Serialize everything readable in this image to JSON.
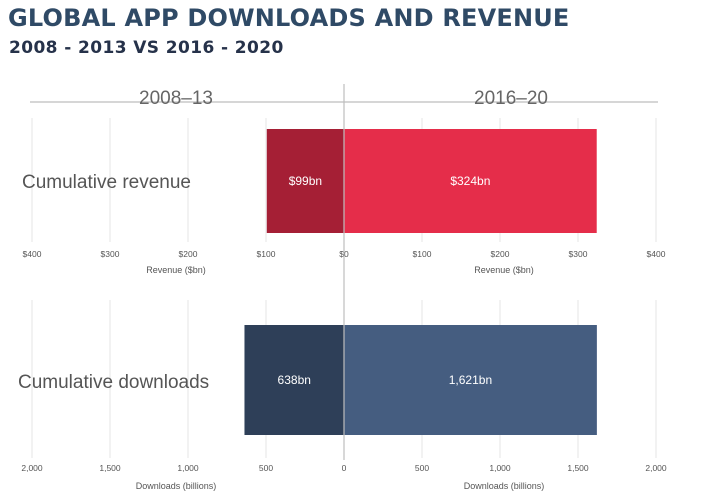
{
  "title": "GLOBAL APP DOWNLOADS AND REVENUE",
  "subtitle": "2008 - 2013 VS 2016 - 2020",
  "chart_data": [
    {
      "type": "bar",
      "orientation": "horizontal-diverging",
      "category": "Cumulative revenue",
      "periods": [
        "2008–13",
        "2016–20"
      ],
      "series": [
        {
          "period": "2008–13",
          "value": 99,
          "label": "$99bn",
          "color": "#a51f35"
        },
        {
          "period": "2016–20",
          "value": 324,
          "label": "$324bn",
          "color": "#e52d4a"
        }
      ],
      "xlim": [
        -400,
        400
      ],
      "ticks": [
        -400,
        -300,
        -200,
        -100,
        0,
        100,
        200,
        300,
        400
      ],
      "tick_labels": [
        "$400",
        "$300",
        "$200",
        "$100",
        "$0",
        "$100",
        "$200",
        "$300",
        "$400"
      ],
      "xlabel_left": "Revenue ($bn)",
      "xlabel_right": "Revenue ($bn)",
      "grid": true
    },
    {
      "type": "bar",
      "orientation": "horizontal-diverging",
      "category": "Cumulative downloads",
      "periods": [
        "2008–13",
        "2016–20"
      ],
      "series": [
        {
          "period": "2008–13",
          "value": 638,
          "label": "638bn",
          "color": "#2e3f58"
        },
        {
          "period": "2016–20",
          "value": 1621,
          "label": "1,621bn",
          "color": "#455d80"
        }
      ],
      "xlim": [
        -2000,
        2000
      ],
      "ticks": [
        -2000,
        -1500,
        -1000,
        -500,
        0,
        500,
        1000,
        1500,
        2000
      ],
      "tick_labels": [
        "2,000",
        "1,500",
        "1,000",
        "500",
        "0",
        "500",
        "1,000",
        "1,500",
        "2,000"
      ],
      "xlabel_left": "Downloads (billions)",
      "xlabel_right": "Downloads (billions)",
      "grid": true
    }
  ]
}
